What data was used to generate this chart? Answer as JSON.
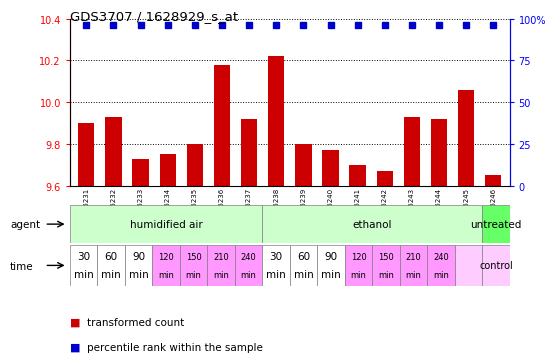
{
  "title": "GDS3707 / 1628929_s_at",
  "samples": [
    "GSM455231",
    "GSM455232",
    "GSM455233",
    "GSM455234",
    "GSM455235",
    "GSM455236",
    "GSM455237",
    "GSM455238",
    "GSM455239",
    "GSM455240",
    "GSM455241",
    "GSM455242",
    "GSM455243",
    "GSM455244",
    "GSM455245",
    "GSM455246"
  ],
  "bar_values": [
    9.9,
    9.93,
    9.73,
    9.75,
    9.8,
    10.18,
    9.92,
    10.22,
    9.8,
    9.77,
    9.7,
    9.67,
    9.93,
    9.92,
    10.06,
    9.65
  ],
  "percentile_values": [
    96,
    96,
    96,
    96,
    96,
    96,
    96,
    96,
    96,
    96,
    96,
    96,
    96,
    96,
    96,
    96
  ],
  "bar_color": "#cc0000",
  "percentile_color": "#0000cc",
  "ylim_left": [
    9.6,
    10.4
  ],
  "ylim_right": [
    0,
    100
  ],
  "yticks_left": [
    9.6,
    9.8,
    10.0,
    10.2,
    10.4
  ],
  "yticks_right": [
    0,
    25,
    50,
    75,
    100
  ],
  "ytick_labels_right": [
    "0",
    "25",
    "50",
    "75",
    "100%"
  ],
  "agent_groups": [
    {
      "label": "humidified air",
      "start": 0,
      "end": 7,
      "color": "#ccffcc"
    },
    {
      "label": "ethanol",
      "start": 7,
      "end": 15,
      "color": "#ccffcc"
    },
    {
      "label": "untreated",
      "start": 15,
      "end": 16,
      "color": "#66ff66"
    }
  ],
  "time_labels_line1": [
    "30",
    "60",
    "90",
    "120",
    "150",
    "210",
    "240",
    "30",
    "60",
    "90",
    "120",
    "150",
    "210",
    "240",
    "",
    ""
  ],
  "time_labels_line2": [
    "min",
    "min",
    "min",
    "min",
    "min",
    "min",
    "min",
    "min",
    "min",
    "min",
    "min",
    "min",
    "min",
    "min",
    "",
    ""
  ],
  "time_colors": [
    "#ffffff",
    "#ffffff",
    "#ffffff",
    "#ff99ff",
    "#ff99ff",
    "#ff99ff",
    "#ff99ff",
    "#ffffff",
    "#ffffff",
    "#ffffff",
    "#ff99ff",
    "#ff99ff",
    "#ff99ff",
    "#ff99ff",
    "#ffccff",
    "#ffccff"
  ],
  "time_last_label": "control",
  "time_row_label": "time",
  "agent_row_label": "agent",
  "legend_items": [
    {
      "color": "#cc0000",
      "label": "transformed count"
    },
    {
      "color": "#0000cc",
      "label": "percentile rank within the sample"
    }
  ],
  "n_samples": 16,
  "bar_width": 0.6,
  "percentile_marker_size": 5
}
